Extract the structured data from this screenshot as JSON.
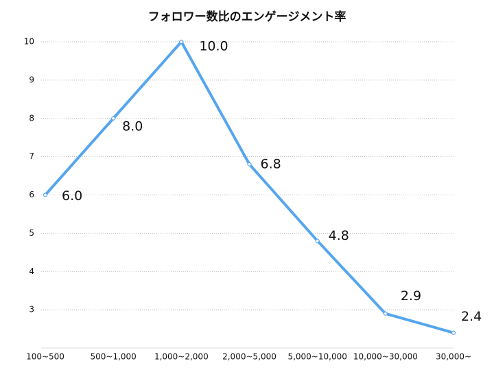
{
  "chart_data": {
    "type": "line",
    "title": "フォロワー数比のエンゲージメント率",
    "categories": [
      "100~500",
      "500~1,000",
      "1,000~2,000",
      "2,000~5,000",
      "5,000~10,000",
      "10,000~30,000",
      "30,000~"
    ],
    "series": [
      {
        "color": "#55a6ee",
        "values": [
          6.0,
          8.0,
          10.0,
          6.8,
          4.8,
          2.9,
          2.4
        ],
        "value_labels": [
          "6.0",
          "8.0",
          "10.0",
          "6.8",
          "4.8",
          "2.9",
          "2.4"
        ]
      }
    ],
    "ylim": [
      2,
      10
    ],
    "yticks": [
      3,
      4,
      5,
      6,
      7,
      8,
      9,
      10
    ],
    "grid": true
  }
}
